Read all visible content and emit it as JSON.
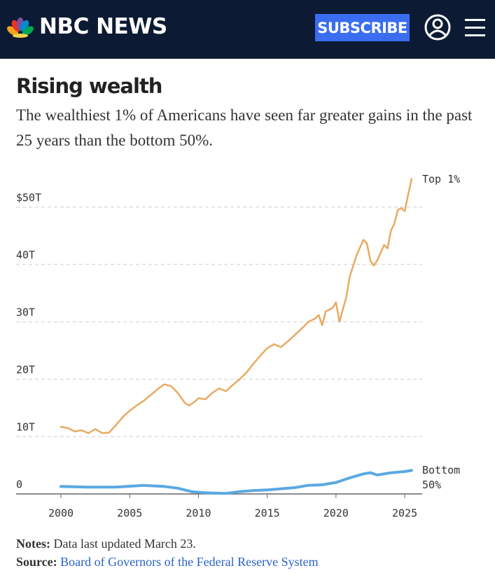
{
  "header": {
    "logo": "NBC NEWS",
    "subscribe": "SUBSCRIBE"
  },
  "chart_data": {
    "type": "line",
    "title": "Rising wealth",
    "subtitle": "The wealthiest 1% of Americans have seen far greater gains in the past 25 years than the bottom 50%.",
    "xlim": [
      1996.74,
      2026.27
    ],
    "ylim": [
      0,
      57
    ],
    "xticks": [
      2000,
      2005,
      2010,
      2015,
      2020,
      2025
    ],
    "yticks": [
      0,
      {
        "value": 10,
        "label": "10T"
      },
      {
        "value": 20,
        "label": "20T"
      },
      {
        "value": 30,
        "label": "30T"
      },
      {
        "value": 40,
        "label": "40T"
      },
      {
        "value": 50,
        "label": "$50T"
      }
    ],
    "grid": true,
    "series": [
      {
        "name": "Top 1%",
        "color": "#e8aa62",
        "x": [
          2000,
          2000.5,
          2001,
          2001.5,
          2002,
          2002.5,
          2003,
          2003.5,
          2004,
          2004.5,
          2005,
          2005.5,
          2006,
          2006.5,
          2007,
          2007.5,
          2008,
          2008.5,
          2009,
          2009.3,
          2009.75,
          2010,
          2010.5,
          2011,
          2011.5,
          2012,
          2012.5,
          2013,
          2013.5,
          2014,
          2014.5,
          2015,
          2015.5,
          2016,
          2016.5,
          2017,
          2017.5,
          2018,
          2018.5,
          2018.75,
          2019,
          2019.25,
          2019.75,
          2020,
          2020.25,
          2020.75,
          2021,
          2021.5,
          2022,
          2022.25,
          2022.5,
          2022.75,
          2023,
          2023.5,
          2023.75,
          2024,
          2024.25,
          2024.5,
          2024.75,
          2025,
          2025.25,
          2025.5
        ],
        "values": [
          11.7,
          11.5,
          10.9,
          11.1,
          10.6,
          11.3,
          10.6,
          10.7,
          12.0,
          13.4,
          14.5,
          15.4,
          16.2,
          17.2,
          18.2,
          19.1,
          18.8,
          17.6,
          15.9,
          15.4,
          16.1,
          16.7,
          16.5,
          17.6,
          18.4,
          17.9,
          19.0,
          20.0,
          21.2,
          22.7,
          24.1,
          25.4,
          26.1,
          25.6,
          26.6,
          27.7,
          28.8,
          30.0,
          30.6,
          31.2,
          29.4,
          31.8,
          32.4,
          33.4,
          30.0,
          34.3,
          37.9,
          41.6,
          44.3,
          43.7,
          40.7,
          39.8,
          40.7,
          43.4,
          42.8,
          45.9,
          47.1,
          49.5,
          49.8,
          49.3,
          52.2,
          54.9
        ]
      },
      {
        "name": "Bottom 50%",
        "color": "#5aa9e2",
        "x": [
          2000,
          2002,
          2004,
          2006,
          2007.5,
          2008.5,
          2009.5,
          2010.5,
          2012,
          2013,
          2014,
          2015,
          2016,
          2017,
          2018,
          2019,
          2020,
          2021,
          2022,
          2022.5,
          2023,
          2023.5,
          2024,
          2025,
          2025.5
        ],
        "values": [
          1.3,
          1.2,
          1.2,
          1.5,
          1.3,
          1.0,
          0.4,
          0.2,
          0.1,
          0.4,
          0.6,
          0.7,
          0.9,
          1.1,
          1.5,
          1.6,
          2.0,
          2.8,
          3.5,
          3.7,
          3.3,
          3.5,
          3.7,
          3.9,
          4.1
        ]
      }
    ]
  },
  "notes": {
    "label": "Notes:",
    "text": "Data last updated March 23."
  },
  "source": {
    "label": "Source:",
    "text": "Board of Governors of the Federal Reserve System"
  }
}
